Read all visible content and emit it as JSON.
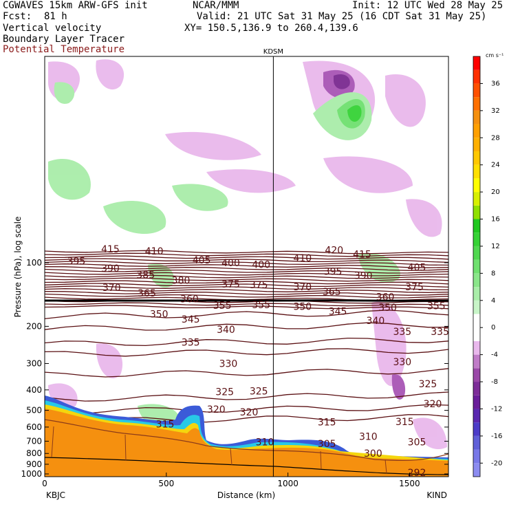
{
  "header": {
    "model": "CGWAVES 15km ARW-GFS init",
    "org": "NCAR/MMM",
    "init": "Init: 12 UTC Wed 28 May 25",
    "fcst_label": "Fcst:",
    "fcst_value": "81 h",
    "valid": "Valid: 21 UTC Sat 31 May 25 (16 CDT Sat 31 May 25)",
    "field1": "Vertical velocity",
    "field2": "Boundary Layer Tracer",
    "field3": "Potential Temperature",
    "xy": "XY= 150.5,136.9 to 260.4,139.6"
  },
  "colors": {
    "theta_contour": "#5a0f12",
    "tracer_orange": "#f5900f",
    "terrain_brown": "#8b3a1a"
  },
  "chart_data": {
    "type": "cross-section",
    "title": "",
    "xlabel": "Distance (km)",
    "ylabel": "Pressure (hPa), log scale",
    "xlim": [
      0,
      1660
    ],
    "x_ticks": [
      0,
      500,
      1000,
      1500
    ],
    "x_tick_labels": [
      "0",
      "500",
      "1000",
      "1500"
    ],
    "y_scale": "log",
    "y_ticks": [
      100,
      200,
      300,
      400,
      500,
      600,
      700,
      800,
      900,
      1000
    ],
    "y_tick_labels": [
      "100",
      "200",
      "300",
      "400",
      "500",
      "600",
      "700",
      "800",
      "900",
      "1000"
    ],
    "station_left": "KBJC",
    "station_right": "KIND",
    "station_mid": "KDSM",
    "station_mid_x": 940,
    "colorbar": {
      "units_label": "cm s⁻¹",
      "tick_labels": [
        "36",
        "32",
        "28",
        "24",
        "20",
        "16",
        "12",
        "8",
        "4",
        "0",
        "-4",
        "-8",
        "-12",
        "-16",
        "-20"
      ],
      "tick_values": [
        36,
        32,
        28,
        24,
        20,
        16,
        12,
        8,
        4,
        0,
        -4,
        -8,
        -12,
        -16,
        -20
      ],
      "range": [
        -22,
        40
      ]
    },
    "theta_labels": [
      {
        "text": "415",
        "x": 270,
        "p": 86
      },
      {
        "text": "410",
        "x": 450,
        "p": 88
      },
      {
        "text": "420",
        "x": 1190,
        "p": 87
      },
      {
        "text": "415",
        "x": 1305,
        "p": 91
      },
      {
        "text": "395",
        "x": 130,
        "p": 98
      },
      {
        "text": "405",
        "x": 645,
        "p": 97
      },
      {
        "text": "400",
        "x": 765,
        "p": 100
      },
      {
        "text": "400",
        "x": 890,
        "p": 102
      },
      {
        "text": "410",
        "x": 1060,
        "p": 95
      },
      {
        "text": "390",
        "x": 270,
        "p": 106
      },
      {
        "text": "405",
        "x": 1530,
        "p": 105
      },
      {
        "text": "385",
        "x": 415,
        "p": 114
      },
      {
        "text": "395",
        "x": 1185,
        "p": 110
      },
      {
        "text": "390",
        "x": 1310,
        "p": 115
      },
      {
        "text": "380",
        "x": 560,
        "p": 121
      },
      {
        "text": "375",
        "x": 765,
        "p": 126
      },
      {
        "text": "375",
        "x": 880,
        "p": 127
      },
      {
        "text": "370",
        "x": 275,
        "p": 131
      },
      {
        "text": "370",
        "x": 1060,
        "p": 130
      },
      {
        "text": "375",
        "x": 1520,
        "p": 130
      },
      {
        "text": "365",
        "x": 420,
        "p": 139
      },
      {
        "text": "365",
        "x": 1180,
        "p": 137
      },
      {
        "text": "360",
        "x": 595,
        "p": 148
      },
      {
        "text": "360",
        "x": 1400,
        "p": 145
      },
      {
        "text": "355",
        "x": 730,
        "p": 159
      },
      {
        "text": "355",
        "x": 890,
        "p": 158
      },
      {
        "text": "350",
        "x": 1060,
        "p": 161
      },
      {
        "text": "350",
        "x": 1410,
        "p": 163
      },
      {
        "text": "355",
        "x": 1610,
        "p": 160
      },
      {
        "text": "345",
        "x": 1205,
        "p": 170
      },
      {
        "text": "350",
        "x": 470,
        "p": 175
      },
      {
        "text": "345",
        "x": 600,
        "p": 185
      },
      {
        "text": "340",
        "x": 1360,
        "p": 188
      },
      {
        "text": "340",
        "x": 745,
        "p": 207
      },
      {
        "text": "335",
        "x": 1470,
        "p": 212
      },
      {
        "text": "335",
        "x": 1625,
        "p": 212
      },
      {
        "text": "335",
        "x": 600,
        "p": 238
      },
      {
        "text": "330",
        "x": 755,
        "p": 300
      },
      {
        "text": "330",
        "x": 1470,
        "p": 295
      },
      {
        "text": "325",
        "x": 740,
        "p": 408
      },
      {
        "text": "325",
        "x": 880,
        "p": 405
      },
      {
        "text": "325",
        "x": 1575,
        "p": 375
      },
      {
        "text": "320",
        "x": 705,
        "p": 495
      },
      {
        "text": "320",
        "x": 840,
        "p": 510
      },
      {
        "text": "320",
        "x": 1595,
        "p": 465
      },
      {
        "text": "315",
        "x": 495,
        "p": 580
      },
      {
        "text": "315",
        "x": 1160,
        "p": 568
      },
      {
        "text": "315",
        "x": 1480,
        "p": 565
      },
      {
        "text": "310",
        "x": 905,
        "p": 705
      },
      {
        "text": "310",
        "x": 1330,
        "p": 665
      },
      {
        "text": "305",
        "x": 1160,
        "p": 718
      },
      {
        "text": "305",
        "x": 1530,
        "p": 705
      },
      {
        "text": "300",
        "x": 1350,
        "p": 800
      },
      {
        "text": "292",
        "x": 1530,
        "p": 985
      }
    ]
  }
}
